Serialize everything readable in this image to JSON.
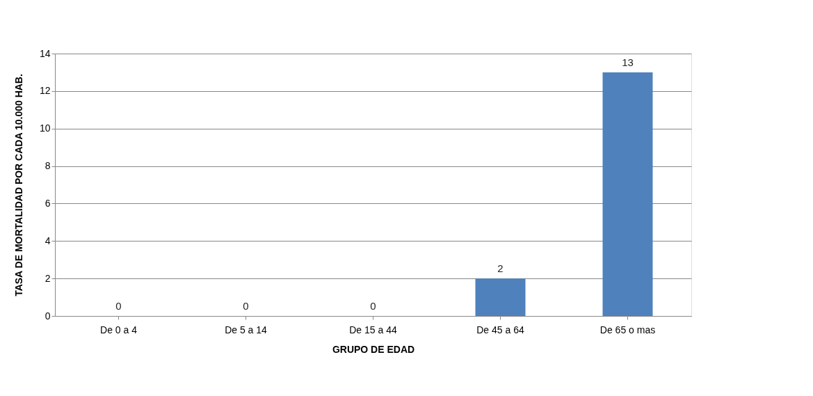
{
  "chart_data": {
    "type": "bar",
    "xlabel": "GRUPO DE EDAD",
    "ylabel": "TASA DE MORTALIDAD POR CADA 10.000 HAB.",
    "categories": [
      "De 0 a 4",
      "De 5 a 14",
      "De 15 a 44",
      "De 45 a 64",
      "De 65 o mas"
    ],
    "values": [
      0,
      0,
      0,
      2,
      13
    ],
    "color": "#4f81bd",
    "ylim": [
      0,
      14
    ],
    "yticks": [
      0,
      2,
      4,
      6,
      8,
      10,
      12,
      14
    ],
    "grid": "y",
    "data_labels": true
  }
}
